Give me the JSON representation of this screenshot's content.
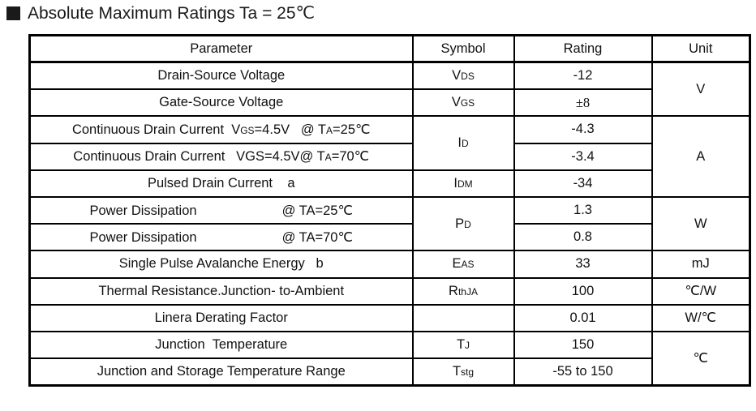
{
  "title": {
    "square_icon": "black-square",
    "text": "Absolute Maximum Ratings Ta = 25℃"
  },
  "table": {
    "headers": [
      "Parameter",
      "Symbol",
      "Rating",
      "Unit"
    ],
    "rows": [
      {
        "param": [
          {
            "t": "Drain-Source Voltage"
          }
        ],
        "symbol": {
          "segs": [
            {
              "t": "V"
            },
            {
              "t": "DS",
              "sub": true
            }
          ]
        },
        "rating": {
          "text": "-12"
        },
        "unit": {
          "text": "V",
          "rowspan": 2
        }
      },
      {
        "param": [
          {
            "t": "Gate-Source Voltage"
          }
        ],
        "symbol": {
          "segs": [
            {
              "t": "V"
            },
            {
              "t": "GS",
              "sub": true
            }
          ]
        },
        "rating": {
          "text": "±8",
          "serif": true
        }
      },
      {
        "param": [
          {
            "t": "Continuous Drain Current  V"
          },
          {
            "t": "GS",
            "sub": true
          },
          {
            "t": "=4.5V   @ T"
          },
          {
            "t": "A",
            "sub": true
          },
          {
            "t": "=25℃"
          }
        ],
        "symbol": {
          "segs": [
            {
              "t": "I"
            },
            {
              "t": "D",
              "sub": true
            }
          ],
          "rowspan": 2
        },
        "rating": {
          "text": "-4.3"
        },
        "unit": {
          "text": "A",
          "rowspan": 3
        }
      },
      {
        "param": [
          {
            "t": "Continuous Drain Current   VGS=4.5V@ T"
          },
          {
            "t": "A",
            "sub": true
          },
          {
            "t": "=70℃"
          }
        ],
        "rating": {
          "text": "-3.4"
        }
      },
      {
        "param": [
          {
            "t": "Pulsed Drain Current    a"
          }
        ],
        "symbol": {
          "segs": [
            {
              "t": "I"
            },
            {
              "t": "DM",
              "sub": true
            }
          ]
        },
        "rating": {
          "text": "-34"
        }
      },
      {
        "param": [
          {
            "t": "Power Dissipation"
          },
          {
            "gap": 105
          },
          {
            "t": "@ TA=25℃"
          }
        ],
        "symbol": {
          "segs": [
            {
              "t": "P"
            },
            {
              "t": "D",
              "sub": true
            }
          ],
          "rowspan": 2
        },
        "rating": {
          "text": "1.3"
        },
        "unit": {
          "text": "W",
          "rowspan": 2
        }
      },
      {
        "param": [
          {
            "t": "Power Dissipation"
          },
          {
            "gap": 105
          },
          {
            "t": "@ TA=70℃"
          }
        ],
        "rating": {
          "text": "0.8"
        }
      },
      {
        "param": [
          {
            "t": "Single Pulse Avalanche Energy   b"
          }
        ],
        "symbol": {
          "segs": [
            {
              "t": "E"
            },
            {
              "t": "AS",
              "sub": true
            }
          ]
        },
        "rating": {
          "text": "33"
        },
        "unit": {
          "text": "mJ"
        }
      },
      {
        "param": [
          {
            "t": "Thermal Resistance.Junction- to-Ambient"
          }
        ],
        "symbol": {
          "segs": [
            {
              "t": "R"
            },
            {
              "t": "thJA",
              "sub": true
            }
          ]
        },
        "rating": {
          "text": "100"
        },
        "unit": {
          "text": "℃/W"
        }
      },
      {
        "param": [
          {
            "t": "Linera Derating Factor"
          }
        ],
        "symbol": {
          "segs": []
        },
        "rating": {
          "text": "0.01"
        },
        "unit": {
          "text": "W/℃"
        }
      },
      {
        "param": [
          {
            "t": "Junction  Temperature"
          }
        ],
        "symbol": {
          "segs": [
            {
              "t": "T"
            },
            {
              "t": "J",
              "sub": true
            }
          ]
        },
        "rating": {
          "text": "150"
        },
        "unit": {
          "text": "℃",
          "rowspan": 2
        }
      },
      {
        "param": [
          {
            "t": "Junction and Storage Temperature Range"
          }
        ],
        "symbol": {
          "segs": [
            {
              "t": "T"
            },
            {
              "t": "stg",
              "sub": true
            }
          ]
        },
        "rating": {
          "text": "-55 to 150"
        }
      }
    ]
  }
}
